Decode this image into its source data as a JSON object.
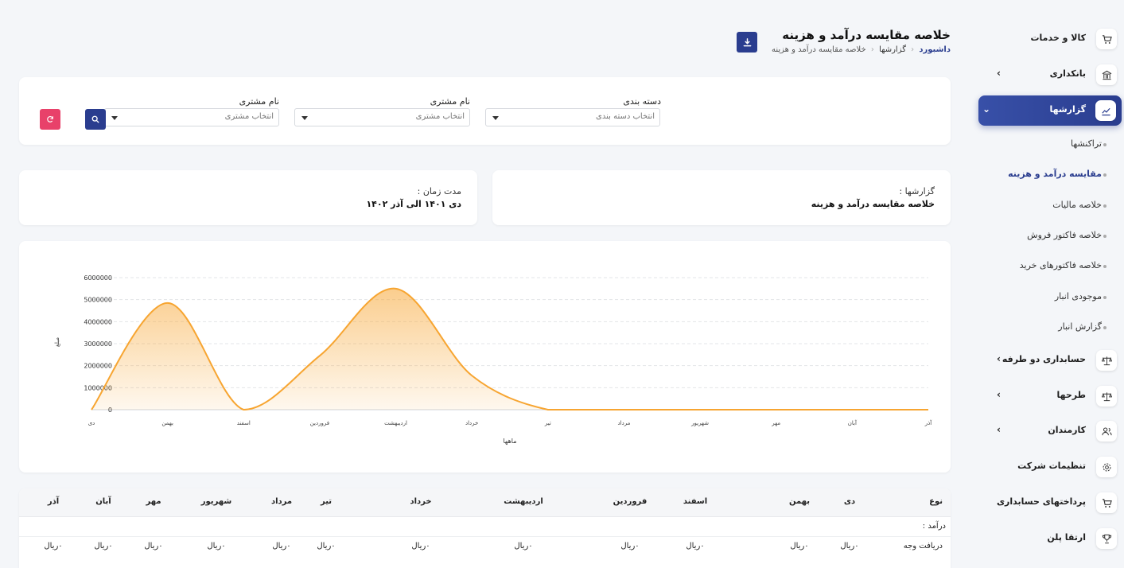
{
  "header": {
    "title": "خلاصه مقایسه درآمد و هزینه",
    "breadcrumb": [
      "داشبورد",
      "گزارشها",
      "خلاصه مقایسه درآمد و هزینه"
    ],
    "download_icon": "download-icon"
  },
  "sidebar": {
    "items": [
      {
        "label": "کالا و خدمات",
        "icon": "cart-icon",
        "chevron": false
      },
      {
        "label": "بانکداری",
        "icon": "bank-icon",
        "chevron": true
      },
      {
        "label": "گزارشها",
        "icon": "chart-icon",
        "chevron": true,
        "active": true
      },
      {
        "label": "حسابداری دو طرفه",
        "icon": "scale-icon",
        "chevron": true
      },
      {
        "label": "طرحها",
        "icon": "scale-icon",
        "chevron": true
      },
      {
        "label": "کارمندان",
        "icon": "users-icon",
        "chevron": true
      },
      {
        "label": "تنظیمات شرکت",
        "icon": "gear-icon",
        "chevron": false
      },
      {
        "label": "پرداختهای حسابداری",
        "icon": "cart-icon",
        "chevron": false
      },
      {
        "label": "ارتقا پلن",
        "icon": "trophy-icon",
        "chevron": false
      }
    ],
    "subitems": [
      "تراکنشها",
      "مقایسه درآمد و هزینه",
      "خلاصه مالیات",
      "خلاصه فاکتور فروش",
      "خلاصه فاکتورهای خرید",
      "موجودی انبار",
      "گزارش انبار"
    ]
  },
  "filters": {
    "category_label": "دسته بندی",
    "category_placeholder": "انتخاب دسته بندی",
    "customer1_label": "نام مشتری",
    "customer1_placeholder": "انتخاب مشتری",
    "customer2_label": "نام مشتری",
    "customer2_placeholder": "انتخاب مشتری",
    "search_icon": "search-icon",
    "reset_icon": "refresh-icon"
  },
  "info": {
    "report_label": "گزارشها :",
    "report_value": "خلاصه مقایسه درآمد و هزینه",
    "period_label": "مدت زمان :",
    "period_value": "دی ۱۴۰۱ الی آذر ۱۴۰۲"
  },
  "chart_data": {
    "type": "area",
    "x": [
      "دی",
      "بهمن",
      "اسفند",
      "فروردین",
      "اردیبهشت",
      "خرداد",
      "تیر",
      "مرداد",
      "شهریور",
      "مهر",
      "آبان",
      "آذر"
    ],
    "series": [
      {
        "values": [
          0,
          4850000,
          0,
          2450000,
          5500000,
          1550000,
          0,
          0,
          0,
          0,
          0,
          0
        ]
      }
    ],
    "yticks": [
      "0",
      "1000000",
      "2000000",
      "3000000",
      "4000000",
      "5000000",
      "6000000"
    ],
    "ylim": [
      0,
      6000000
    ],
    "xlabel": "ماهها",
    "ylabel": "مبلغ",
    "grid": true,
    "color": "#f7a531"
  },
  "table": {
    "headers": [
      "نوع",
      "دی",
      "بهمن",
      "اسفند",
      "فروردین",
      "اردیبهشت",
      "خرداد",
      "تیر",
      "مرداد",
      "شهریور",
      "مهر",
      "آبان",
      "آذر"
    ],
    "section_label": "درآمد :",
    "rows": [
      [
        "دریافت وجه",
        "۰ریال",
        "۰ریال",
        "۰ریال",
        "۰ریال",
        "۰ریال",
        "۰ریال",
        "۰ریال",
        "۰ریال",
        "۰ریال",
        "۰ریال",
        "۰ریال",
        "۰ریال"
      ]
    ]
  }
}
